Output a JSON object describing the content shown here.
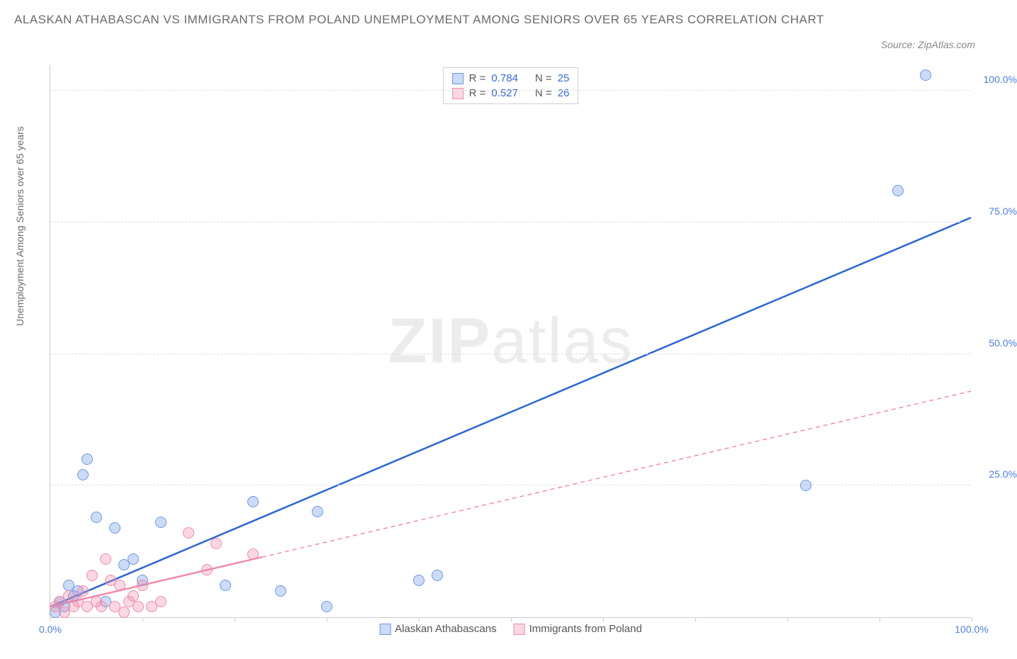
{
  "title": "ALASKAN ATHABASCAN VS IMMIGRANTS FROM POLAND UNEMPLOYMENT AMONG SENIORS OVER 65 YEARS CORRELATION CHART",
  "source_label": "Source: ZipAtlas.com",
  "y_axis_label": "Unemployment Among Seniors over 65 years",
  "watermark_a": "ZIP",
  "watermark_b": "atlas",
  "chart": {
    "type": "scatter",
    "xlim": [
      0,
      100
    ],
    "ylim": [
      0,
      105
    ],
    "x_ticks": [
      0,
      10,
      20,
      30,
      40,
      50,
      60,
      70,
      80,
      90,
      100
    ],
    "x_tick_labels": {
      "0": "0.0%",
      "100": "100.0%"
    },
    "y_ticks": [
      25,
      50,
      75,
      100
    ],
    "y_tick_labels": [
      "25.0%",
      "50.0%",
      "75.0%",
      "100.0%"
    ],
    "grid_color": "#e0e0e0",
    "background_color": "#ffffff",
    "axis_label_color": "#4a7ee8",
    "series": [
      {
        "name": "Alaskan Athabascans",
        "color_fill": "rgba(108,152,232,0.35)",
        "color_stroke": "#6c98e8",
        "trend_color": "#2a66d8",
        "trend_dash": "none",
        "trend_extend_dash": false,
        "marker_radius": 8,
        "R": "0.784",
        "N": "25",
        "points": [
          [
            0.5,
            1
          ],
          [
            1,
            3
          ],
          [
            1.5,
            2
          ],
          [
            2,
            6
          ],
          [
            2.5,
            4
          ],
          [
            3,
            5
          ],
          [
            3.5,
            27
          ],
          [
            4,
            30
          ],
          [
            5,
            19
          ],
          [
            6,
            3
          ],
          [
            7,
            17
          ],
          [
            8,
            10
          ],
          [
            9,
            11
          ],
          [
            10,
            7
          ],
          [
            12,
            18
          ],
          [
            19,
            6
          ],
          [
            22,
            22
          ],
          [
            25,
            5
          ],
          [
            29,
            20
          ],
          [
            30,
            2
          ],
          [
            40,
            7
          ],
          [
            42,
            8
          ],
          [
            82,
            25
          ],
          [
            92,
            81
          ],
          [
            95,
            103
          ]
        ],
        "trend": {
          "x1": 0,
          "y1": 2,
          "x2": 100,
          "y2": 76
        }
      },
      {
        "name": "Immigrants from Poland",
        "color_fill": "rgba(240,140,170,0.35)",
        "color_stroke": "#f08caa",
        "trend_color": "#f08caa",
        "trend_dash": "6,5",
        "trend_extend_dash": true,
        "marker_radius": 8,
        "R": "0.527",
        "N": "26",
        "points": [
          [
            0.5,
            2
          ],
          [
            1,
            3
          ],
          [
            1.5,
            1
          ],
          [
            2,
            4
          ],
          [
            2.5,
            2
          ],
          [
            3,
            3
          ],
          [
            3.5,
            5
          ],
          [
            4,
            2
          ],
          [
            4.5,
            8
          ],
          [
            5,
            3
          ],
          [
            5.5,
            2
          ],
          [
            6,
            11
          ],
          [
            6.5,
            7
          ],
          [
            7,
            2
          ],
          [
            7.5,
            6
          ],
          [
            8,
            1
          ],
          [
            8.5,
            3
          ],
          [
            9,
            4
          ],
          [
            9.5,
            2
          ],
          [
            10,
            6
          ],
          [
            11,
            2
          ],
          [
            12,
            3
          ],
          [
            15,
            16
          ],
          [
            17,
            9
          ],
          [
            18,
            14
          ],
          [
            22,
            12
          ]
        ],
        "trend": {
          "x1": 0,
          "y1": 2,
          "x2": 100,
          "y2": 43
        },
        "solid_until_x": 23
      }
    ]
  },
  "legend_stats": {
    "r_label": "R =",
    "n_label": "N ="
  },
  "bottom_legend": [
    {
      "swatch_fill": "rgba(108,152,232,0.35)",
      "swatch_stroke": "#6c98e8",
      "label": "Alaskan Athabascans"
    },
    {
      "swatch_fill": "rgba(240,140,170,0.35)",
      "swatch_stroke": "#f08caa",
      "label": "Immigrants from Poland"
    }
  ]
}
